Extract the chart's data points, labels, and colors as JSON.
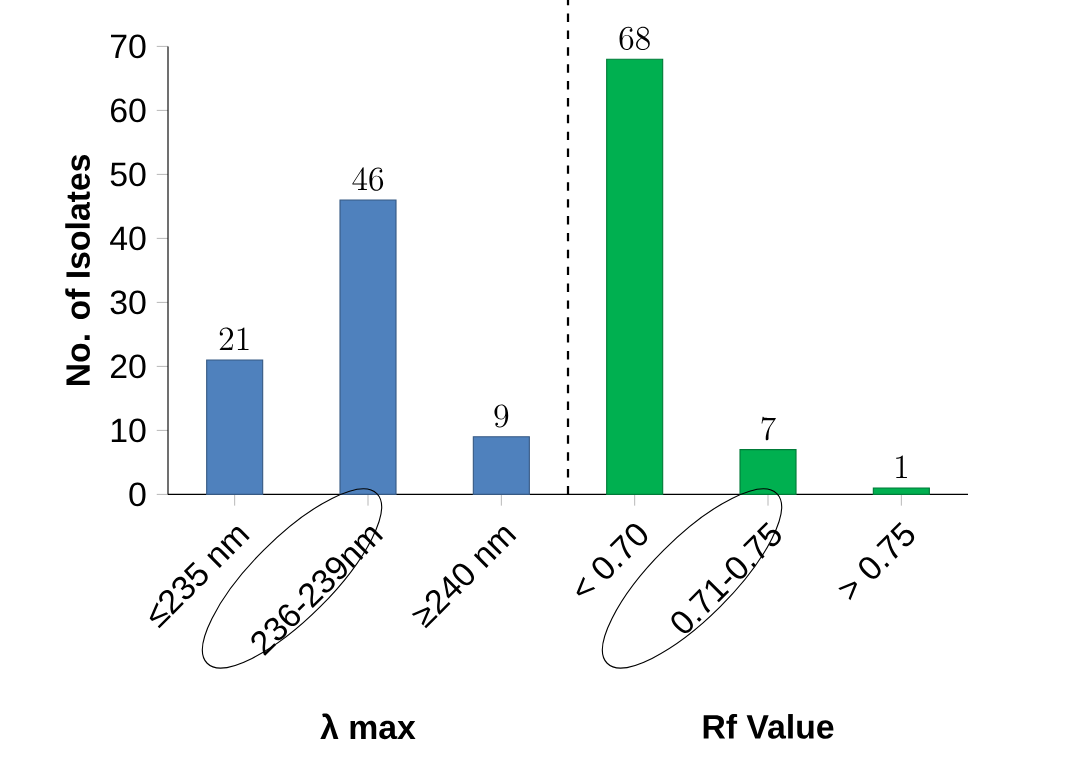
{
  "chart_data": {
    "type": "bar",
    "ylabel": "No. of Isolates",
    "categories": [
      "≤235 nm",
      "236-239nm",
      "≥240 nm",
      "< 0.70",
      "0.71-0.75",
      "> 0.75"
    ],
    "values": [
      21,
      46,
      9,
      68,
      7,
      1
    ],
    "colors": [
      "#4f81bd",
      "#4f81bd",
      "#4f81bd",
      "#00b050",
      "#00b050",
      "#00b050"
    ],
    "ylim": [
      0,
      70
    ],
    "yticks": [
      0,
      10,
      20,
      30,
      40,
      50,
      60,
      70
    ],
    "data_labels": true,
    "annotations": [
      "λ max",
      "Rf Value"
    ]
  }
}
